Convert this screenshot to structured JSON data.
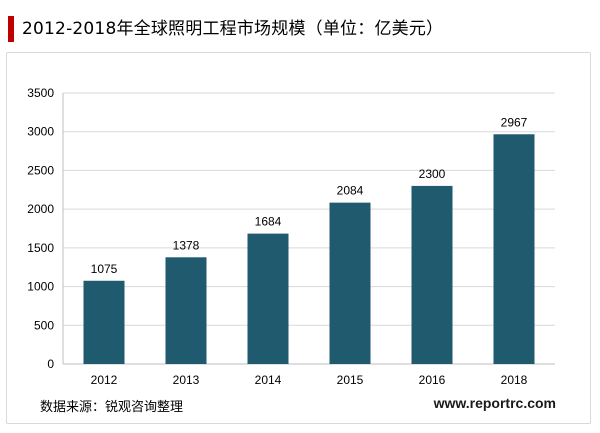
{
  "header": {
    "title": "2012-2018年全球照明工程市场规模（单位：亿美元）"
  },
  "footer": {
    "source": "数据来源：锐观咨询整理",
    "site": "www.reportrc.com"
  },
  "colors": {
    "bar": "#1f5a6e",
    "accent": "#c00000",
    "grid": "#d9d9d9"
  },
  "chart_data": {
    "type": "bar",
    "title": "2012-2018年全球照明工程市场规模（单位：亿美元）",
    "categories": [
      "2012",
      "2013",
      "2014",
      "2015",
      "2016",
      "2018"
    ],
    "values": [
      1075,
      1378,
      1684,
      2084,
      2300,
      2967
    ],
    "value_labels": [
      "1075",
      "1378",
      "1684",
      "2084",
      "2300",
      "2967"
    ],
    "yticks": [
      0,
      500,
      1000,
      1500,
      2000,
      2500,
      3000,
      3500
    ],
    "ytick_labels": [
      "0",
      "500",
      "1000",
      "1500",
      "2000",
      "2500",
      "3000",
      "3500"
    ],
    "ylim": [
      0,
      3500
    ],
    "xlabel": "",
    "ylabel": "",
    "grid": true,
    "legend": "none"
  }
}
